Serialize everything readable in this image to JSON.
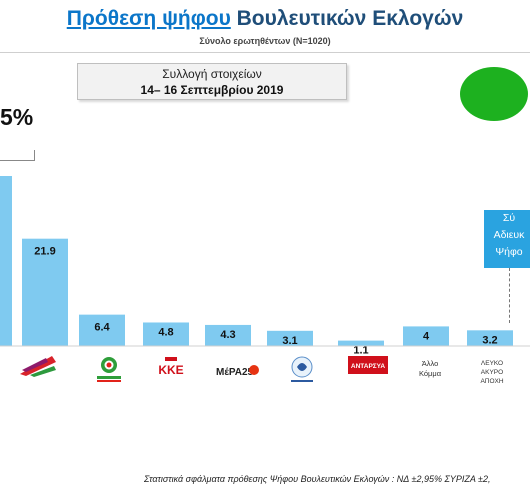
{
  "header": {
    "title_part1": "Πρόθεση ψήφου",
    "title_part2": " Βουλευτικών Εκλογών",
    "subtitle": "Σύνολο ερωτηθέντων (Ν=1020)"
  },
  "date_box": {
    "line1": "Συλλογή στοιχείων",
    "line2": "14– 16 Σεπτεμβρίου 2019"
  },
  "first_bar_label": "5%",
  "side_box": {
    "lines": [
      "Σύ",
      "Αδιευκ",
      "Ψήφο"
    ]
  },
  "party_labels": {
    "other": [
      "Άλλο",
      "Κόμμα"
    ],
    "blank": [
      "ΛΕΥΚΟ",
      "ΑΚΥΡΟ",
      "ΑΠΟΧΗ"
    ],
    "kke": "ΚΚΕ",
    "mera25": "ΜέΡΑ25",
    "antarsya": "ΑΝΤΑΡΣΥΑ"
  },
  "chart_data": {
    "type": "bar",
    "categories": [
      "ΣΥΡΙΖΑ",
      "Κίνημα Αλλαγής",
      "ΚΚΕ",
      "ΜέΡΑ25",
      "Ελληνική Λύση",
      "ΑΝΤΑΡΣΥΑ",
      "Άλλο Κόμμα",
      "Λευκό/Άκυρο/Αποχή"
    ],
    "values": [
      21.9,
      6.4,
      4.8,
      4.3,
      3.1,
      1.1,
      4,
      3.2
    ],
    "value_labels": [
      "21.9",
      "6.4",
      "4.8",
      "4.3",
      "3.1",
      "1.1",
      "4",
      "3.2"
    ],
    "bar_color": "#7fcaf0",
    "partial_first_bar": {
      "label": "5%"
    }
  },
  "footer": "Στατιστικά σφάλματα πρόθεσης Ψήφου Βουλευτικών Εκλογών : ΝΔ ±2,95% ΣΥΡΙΖΑ ±2,"
}
